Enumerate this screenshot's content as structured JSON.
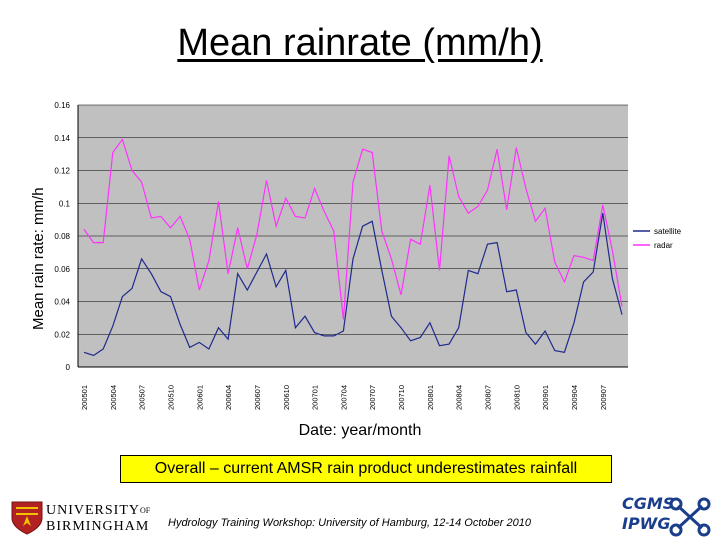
{
  "slide": {
    "title": "Mean rainrate (mm/h)",
    "note": "Overall – current AMSR rain product underestimates rainfall",
    "footer": "Hydrology Training Workshop: University of Hamburg, 12-14 October 2010",
    "logo_university": [
      "UNIVERSITY",
      "OF",
      "BIRMINGHAM"
    ],
    "logo_right": [
      "CGMS",
      "IPWG"
    ]
  },
  "chart_data": {
    "type": "line",
    "title": "",
    "xlabel": "Date: year/month",
    "ylabel": "Mean rain rate: mm/h",
    "ylim": [
      0,
      0.16
    ],
    "yticks": [
      "0",
      "0.02",
      "0.04",
      "0.06",
      "0.08",
      "0.1",
      "0.12",
      "0.14",
      "0.16"
    ],
    "plot_background": "#c0c0c0",
    "grid": true,
    "legend_position": "right",
    "x_tick_labels": [
      "200501",
      "200504",
      "200507",
      "200510",
      "200601",
      "200604",
      "200607",
      "200610",
      "200701",
      "200704",
      "200707",
      "200710",
      "200801",
      "200804",
      "200807",
      "200810",
      "200901",
      "200904",
      "200907"
    ],
    "x": [
      "200501",
      "200502",
      "200503",
      "200504",
      "200505",
      "200506",
      "200507",
      "200508",
      "200509",
      "200510",
      "200511",
      "200512",
      "200601",
      "200602",
      "200603",
      "200604",
      "200605",
      "200606",
      "200607",
      "200608",
      "200609",
      "200610",
      "200611",
      "200612",
      "200701",
      "200702",
      "200703",
      "200704",
      "200705",
      "200706",
      "200707",
      "200708",
      "200709",
      "200710",
      "200711",
      "200712",
      "200801",
      "200802",
      "200803",
      "200804",
      "200805",
      "200806",
      "200807",
      "200808",
      "200809",
      "200810",
      "200811",
      "200812",
      "200901",
      "200902",
      "200903",
      "200904",
      "200905",
      "200906",
      "200907",
      "200908",
      "200909"
    ],
    "series": [
      {
        "name": "satellite",
        "color": "#1f2a8c",
        "values": [
          0.009,
          0.007,
          0.011,
          0.025,
          0.043,
          0.048,
          0.066,
          0.057,
          0.046,
          0.043,
          0.026,
          0.012,
          0.015,
          0.011,
          0.024,
          0.017,
          0.057,
          0.047,
          0.058,
          0.069,
          0.049,
          0.059,
          0.024,
          0.031,
          0.021,
          0.019,
          0.019,
          0.022,
          0.066,
          0.086,
          0.089,
          0.059,
          0.031,
          0.024,
          0.016,
          0.018,
          0.027,
          0.013,
          0.014,
          0.024,
          0.059,
          0.057,
          0.075,
          0.076,
          0.046,
          0.047,
          0.021,
          0.014,
          0.022,
          0.01,
          0.009,
          0.027,
          0.052,
          0.058,
          0.094,
          0.054,
          0.032
        ]
      },
      {
        "name": "radar",
        "color": "#ff33ff",
        "values": [
          0.084,
          0.076,
          0.076,
          0.131,
          0.139,
          0.12,
          0.113,
          0.091,
          0.092,
          0.085,
          0.092,
          0.078,
          0.047,
          0.065,
          0.101,
          0.057,
          0.085,
          0.06,
          0.081,
          0.114,
          0.086,
          0.103,
          0.092,
          0.091,
          0.109,
          0.095,
          0.083,
          0.029,
          0.113,
          0.133,
          0.131,
          0.083,
          0.066,
          0.044,
          0.078,
          0.075,
          0.111,
          0.059,
          0.129,
          0.104,
          0.094,
          0.098,
          0.108,
          0.133,
          0.096,
          0.134,
          0.109,
          0.089,
          0.097,
          0.064,
          0.052,
          0.068,
          0.067,
          0.065,
          0.099,
          0.071,
          0.037
        ]
      }
    ]
  }
}
